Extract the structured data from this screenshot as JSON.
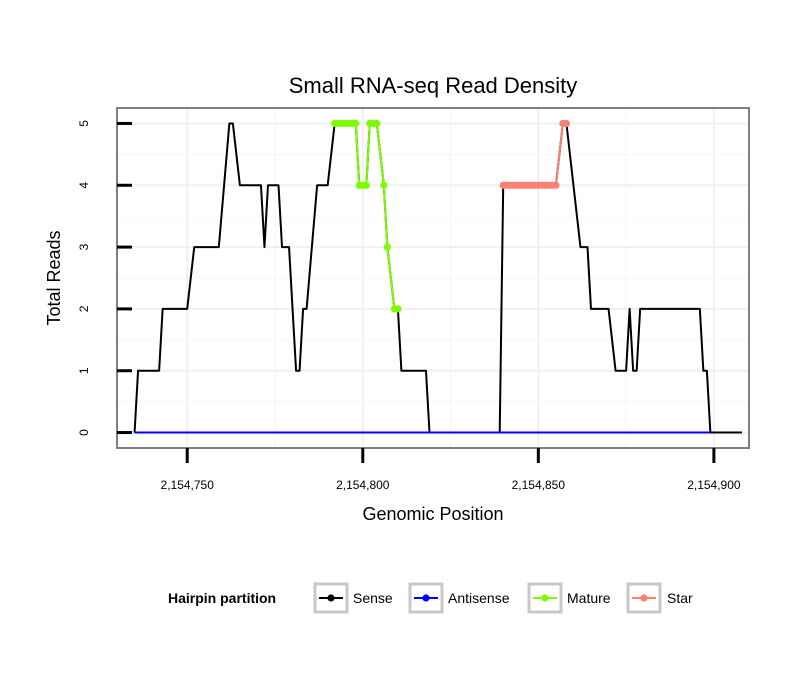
{
  "chart_data": {
    "type": "line",
    "title": "Small RNA-seq Read Density",
    "xlabel": "Genomic Position",
    "ylabel": "Total Reads",
    "xlim": [
      2154730,
      2154910
    ],
    "ylim": [
      -0.25,
      5.25
    ],
    "x_ticks": [
      2154750,
      2154800,
      2154850,
      2154900
    ],
    "x_tick_labels": [
      "2,154,750",
      "2,154,800",
      "2,154,850",
      "2,154,900"
    ],
    "y_ticks": [
      0,
      1,
      2,
      3,
      4,
      5
    ],
    "y_tick_labels": [
      "0",
      "1",
      "2",
      "3",
      "4",
      "5"
    ],
    "legend": {
      "title": "Hairpin partition",
      "placement": "bottom",
      "entries": [
        {
          "name": "Sense",
          "color": "#000000"
        },
        {
          "name": "Antisense",
          "color": "#0000ff"
        },
        {
          "name": "Mature",
          "color": "#7cfc00"
        },
        {
          "name": "Star",
          "color": "#fa8072"
        }
      ]
    },
    "series": [
      {
        "name": "Sense",
        "color": "#000000",
        "points": [
          [
            2154735,
            0
          ],
          [
            2154736,
            1
          ],
          [
            2154742,
            1
          ],
          [
            2154743,
            2
          ],
          [
            2154750,
            2
          ],
          [
            2154752,
            3
          ],
          [
            2154759,
            3
          ],
          [
            2154762,
            5
          ],
          [
            2154763,
            5
          ],
          [
            2154765,
            4
          ],
          [
            2154771,
            4
          ],
          [
            2154772,
            3
          ],
          [
            2154773,
            4
          ],
          [
            2154776,
            4
          ],
          [
            2154777,
            3
          ],
          [
            2154779,
            3
          ],
          [
            2154781,
            1
          ],
          [
            2154782,
            1
          ],
          [
            2154783,
            2
          ],
          [
            2154784,
            2
          ],
          [
            2154787,
            4
          ],
          [
            2154790,
            4
          ],
          [
            2154792,
            5
          ],
          [
            2154798,
            5
          ],
          [
            2154799,
            4
          ],
          [
            2154801,
            4
          ],
          [
            2154802,
            5
          ],
          [
            2154804,
            5
          ],
          [
            2154806,
            4
          ],
          [
            2154807,
            3
          ],
          [
            2154809,
            2
          ],
          [
            2154810,
            2
          ],
          [
            2154811,
            1
          ],
          [
            2154818,
            1
          ],
          [
            2154819,
            0
          ],
          [
            2154839,
            0
          ],
          [
            2154840,
            4
          ],
          [
            2154855,
            4
          ],
          [
            2154857,
            5
          ],
          [
            2154858,
            5
          ],
          [
            2154860,
            4
          ],
          [
            2154862,
            3
          ],
          [
            2154864,
            3
          ],
          [
            2154865,
            2
          ],
          [
            2154870,
            2
          ],
          [
            2154872,
            1
          ],
          [
            2154875,
            1
          ],
          [
            2154876,
            2
          ],
          [
            2154877,
            1
          ],
          [
            2154878,
            1
          ],
          [
            2154879,
            2
          ],
          [
            2154896,
            2
          ],
          [
            2154897,
            1
          ],
          [
            2154898,
            1
          ],
          [
            2154899,
            0
          ],
          [
            2154908,
            0
          ]
        ]
      },
      {
        "name": "Antisense",
        "color": "#0000ff",
        "points": [
          [
            2154735,
            0
          ],
          [
            2154899,
            0
          ]
        ]
      },
      {
        "name": "Mature",
        "color": "#7cfc00",
        "points": [
          [
            2154792,
            5
          ],
          [
            2154793,
            5
          ],
          [
            2154794,
            5
          ],
          [
            2154795,
            5
          ],
          [
            2154796,
            5
          ],
          [
            2154797,
            5
          ],
          [
            2154798,
            5
          ],
          [
            2154799,
            4
          ],
          [
            2154800,
            4
          ],
          [
            2154801,
            4
          ],
          [
            2154802,
            5
          ],
          [
            2154803,
            5
          ],
          [
            2154804,
            5
          ],
          [
            2154806,
            4
          ],
          [
            2154807,
            3
          ],
          [
            2154809,
            2
          ],
          [
            2154810,
            2
          ]
        ]
      },
      {
        "name": "Star",
        "color": "#fa8072",
        "points": [
          [
            2154840,
            4
          ],
          [
            2154841,
            4
          ],
          [
            2154842,
            4
          ],
          [
            2154843,
            4
          ],
          [
            2154844,
            4
          ],
          [
            2154845,
            4
          ],
          [
            2154846,
            4
          ],
          [
            2154847,
            4
          ],
          [
            2154848,
            4
          ],
          [
            2154849,
            4
          ],
          [
            2154850,
            4
          ],
          [
            2154851,
            4
          ],
          [
            2154852,
            4
          ],
          [
            2154853,
            4
          ],
          [
            2154854,
            4
          ],
          [
            2154855,
            4
          ],
          [
            2154857,
            5
          ],
          [
            2154858,
            5
          ]
        ]
      }
    ]
  }
}
